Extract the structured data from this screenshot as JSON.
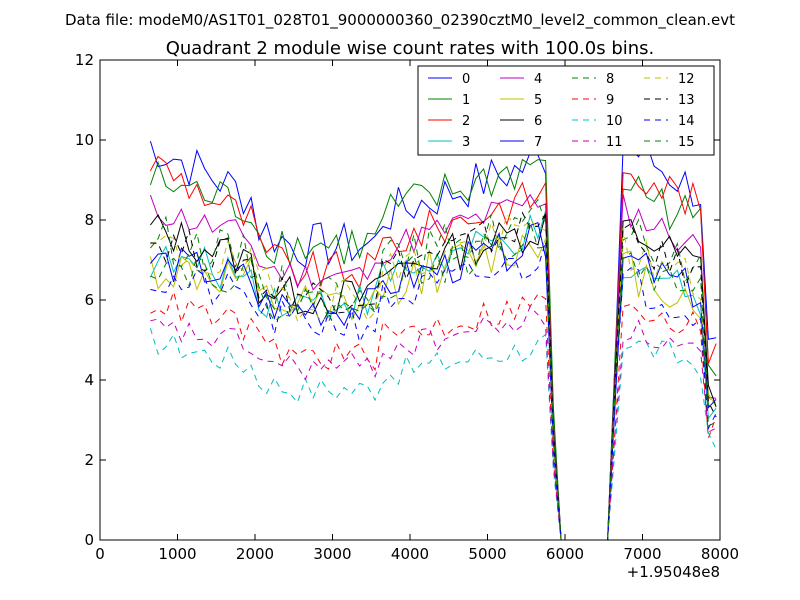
{
  "chart_data": {
    "type": "line",
    "suptitle": "Data file: modeM0/AS1T01_028T01_9000000360_02390cztM0_level2_common_clean.evt",
    "title": "Quadrant 2 module wise count rates with 100.0s bins.",
    "xlabel": "",
    "ylabel": "",
    "x_offset_label": "+1.95048e8",
    "xlim": [
      0,
      8000
    ],
    "ylim": [
      0,
      12
    ],
    "xticks": [
      0,
      1000,
      2000,
      3000,
      4000,
      5000,
      6000,
      7000,
      8000
    ],
    "yticks": [
      0,
      2,
      4,
      6,
      8,
      10,
      12
    ],
    "xtick_labels": [
      "0",
      "1000",
      "2000",
      "3000",
      "4000",
      "5000",
      "6000",
      "7000",
      "8000"
    ],
    "ytick_labels": [
      "0",
      "2",
      "4",
      "6",
      "8",
      "10",
      "12"
    ],
    "legend_position": "top-right",
    "legend_entries": [
      "0",
      "1",
      "2",
      "3",
      "4",
      "5",
      "6",
      "7",
      "8",
      "9",
      "10",
      "11",
      "12",
      "13",
      "14",
      "15"
    ],
    "x_start": 650,
    "x_step": 100,
    "series": [
      {
        "name": "0",
        "color": "#0000ff",
        "dash": "solid",
        "base": 8.0,
        "start": 9.9,
        "end": 8.3,
        "amp": 0.6
      },
      {
        "name": "1",
        "color": "#008000",
        "dash": "solid",
        "base": 8.0,
        "start": 9.0,
        "end": 7.8,
        "amp": 0.6
      },
      {
        "name": "2",
        "color": "#ff0000",
        "dash": "solid",
        "base": 7.3,
        "start": 9.5,
        "end": 7.5,
        "amp": 0.5
      },
      {
        "name": "3",
        "color": "#00bfbf",
        "dash": "solid",
        "base": 6.5,
        "start": 7.0,
        "end": 7.0,
        "amp": 0.5
      },
      {
        "name": "4",
        "color": "#bf00bf",
        "dash": "solid",
        "base": 7.2,
        "start": 8.3,
        "end": 7.3,
        "amp": 0.4
      },
      {
        "name": "5",
        "color": "#bfbf00",
        "dash": "solid",
        "base": 6.3,
        "start": 6.8,
        "end": 6.8,
        "amp": 0.6
      },
      {
        "name": "6",
        "color": "#000000",
        "dash": "solid",
        "base": 6.6,
        "start": 7.8,
        "end": 6.5,
        "amp": 0.5
      },
      {
        "name": "7",
        "color": "#0000ff",
        "dash": "solid",
        "base": 6.3,
        "start": 7.0,
        "end": 6.9,
        "amp": 0.5
      },
      {
        "name": "8",
        "color": "#008000",
        "dash": "dashed",
        "base": 6.8,
        "start": 7.6,
        "end": 7.0,
        "amp": 0.6
      },
      {
        "name": "9",
        "color": "#ff0000",
        "dash": "dashed",
        "base": 5.0,
        "start": 6.0,
        "end": 5.3,
        "amp": 0.4
      },
      {
        "name": "10",
        "color": "#00bfbf",
        "dash": "dashed",
        "base": 4.1,
        "start": 5.0,
        "end": 4.2,
        "amp": 0.35
      },
      {
        "name": "11",
        "color": "#bf00bf",
        "dash": "dashed",
        "base": 4.7,
        "start": 5.3,
        "end": 5.0,
        "amp": 0.35
      },
      {
        "name": "12",
        "color": "#bfbf00",
        "dash": "dashed",
        "base": 6.6,
        "start": 7.3,
        "end": 6.5,
        "amp": 0.6
      },
      {
        "name": "13",
        "color": "#000000",
        "dash": "dashed",
        "base": 6.7,
        "start": 7.5,
        "end": 6.8,
        "amp": 0.5
      },
      {
        "name": "14",
        "color": "#0000ff",
        "dash": "dashed",
        "base": 5.9,
        "start": 6.5,
        "end": 6.1,
        "amp": 0.5
      },
      {
        "name": "15",
        "color": "#008000",
        "dash": "dashed",
        "base": 6.4,
        "start": 7.0,
        "end": 6.7,
        "amp": 0.5
      }
    ]
  }
}
